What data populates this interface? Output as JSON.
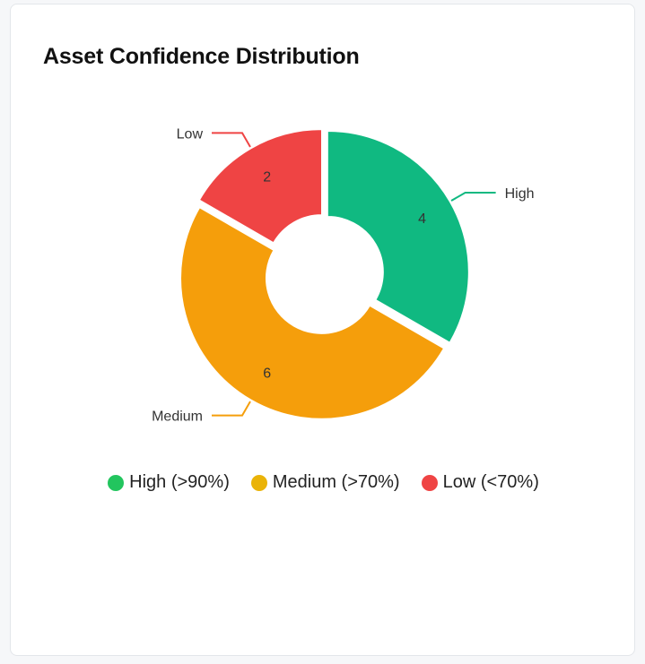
{
  "card": {
    "title": "Asset Confidence Distribution"
  },
  "chart_data": {
    "type": "pie",
    "variant": "doughnut",
    "title": "Asset Confidence Distribution",
    "slices": [
      {
        "name": "High",
        "value": 4,
        "color": "#10b981"
      },
      {
        "name": "Medium",
        "value": 6,
        "color": "#f59e0b"
      },
      {
        "name": "Low",
        "value": 2,
        "color": "#ef4444"
      }
    ],
    "legend": [
      {
        "label": "High (>90%)",
        "color": "#22c55e"
      },
      {
        "label": "Medium (>70%)",
        "color": "#eab308"
      },
      {
        "label": "Low (<70%)",
        "color": "#ef4444"
      }
    ],
    "legend_position": "bottom"
  }
}
